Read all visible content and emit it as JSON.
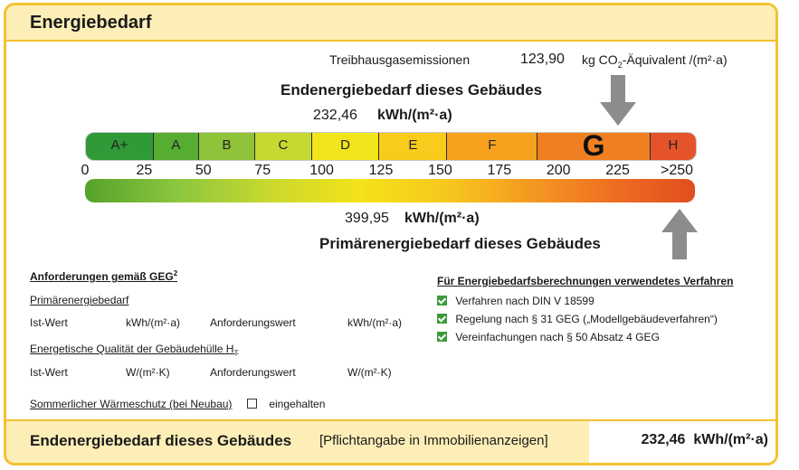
{
  "header": {
    "title": "Energiebedarf"
  },
  "emissions": {
    "label": "Treibhausgasemissionen",
    "value": "123,90",
    "unit_pre": "kg CO",
    "unit_sub": "2",
    "unit_post": "-Äquivalent /(m²·a)"
  },
  "endenergie": {
    "title": "Endenergiebedarf dieses Gebäudes",
    "value": "232,46",
    "unit": "kWh/(m²·a)",
    "arrow_value_kwh": 232.46
  },
  "primaerenergie": {
    "title": "Primärenergiebedarf dieses Gebäudes",
    "value": "399,95",
    "unit": "kWh/(m²·a)",
    "arrow_value_kwh": 399.95
  },
  "scale": {
    "classes": [
      {
        "label": "A+",
        "color": "#2f9a37",
        "from": 0,
        "to": 30
      },
      {
        "label": "A",
        "color": "#57ad32",
        "from": 30,
        "to": 50
      },
      {
        "label": "B",
        "color": "#8fc33a",
        "from": 50,
        "to": 75
      },
      {
        "label": "C",
        "color": "#c6d930",
        "from": 75,
        "to": 100
      },
      {
        "label": "D",
        "color": "#f3e51b",
        "from": 100,
        "to": 130
      },
      {
        "label": "E",
        "color": "#f8cb1c",
        "from": 130,
        "to": 160
      },
      {
        "label": "F",
        "color": "#f6a21f",
        "from": 160,
        "to": 200
      },
      {
        "label": "G",
        "color": "#f07f21",
        "from": 200,
        "to": 250
      },
      {
        "label": "H",
        "color": "#e4532a",
        "from": 250,
        "to": 270
      }
    ],
    "active_class": "G",
    "ticks": [
      "0",
      "25",
      "50",
      "75",
      "100",
      "125",
      "150",
      "175",
      "200",
      "225",
      ">250"
    ]
  },
  "requirements": {
    "heading": "Anforderungen gemäß GEG",
    "heading_sup": "2",
    "primaer_heading": "Primärenergiebedarf",
    "ist_label": "Ist-Wert",
    "kwh_unit": "kWh/(m²·a)",
    "anforderung_label": "Anforderungswert",
    "huelle_heading": "Energetische Qualität der Gebäudehülle H",
    "huelle_sub": "T",
    "w_unit": "W/(m²·K)",
    "sommer_label": "Sommerlicher Wärmeschutz (bei Neubau)",
    "eingehalten": "eingehalten"
  },
  "methods": {
    "heading": "Für Energiebedarfsberechnungen verwendetes Verfahren",
    "items": [
      "Verfahren nach DIN V 18599",
      "Regelung nach § 31 GEG („Modellgebäudeverfahren“)",
      "Vereinfachungen nach § 50 Absatz 4 GEG"
    ],
    "check_color": "#3d9a3a"
  },
  "footer": {
    "title": "Endenergiebedarf dieses Gebäudes",
    "note": "[Pflichtangabe in Immobilienanzeigen]",
    "value": "232,46",
    "unit": "kWh/(m²·a)"
  }
}
